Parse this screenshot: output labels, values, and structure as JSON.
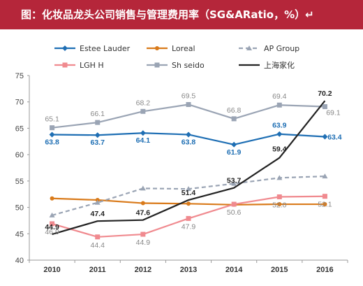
{
  "title": "图：化妆品龙头公司销售与管理费用率（SG&ARatio，%）↵",
  "chart_data": {
    "type": "line",
    "title": "图：化妆品龙头公司销售与管理费用率（SG&ARatio，%）",
    "xlabel": "",
    "ylabel": "",
    "categories": [
      "2010",
      "2011",
      "2012",
      "2013",
      "2014",
      "2015",
      "2016"
    ],
    "ylim": [
      40,
      75
    ],
    "yticks": [
      40,
      45,
      50,
      55,
      60,
      65,
      70,
      75
    ],
    "grid": false,
    "legend_position": "top",
    "series": [
      {
        "name": "Estee Lauder",
        "color": "#1f6fb4",
        "style": "solid",
        "marker": "diamond",
        "values": [
          63.8,
          63.7,
          64.1,
          63.8,
          61.9,
          63.9,
          63.4
        ],
        "labels": [
          "63.8",
          "63.7",
          "64.1",
          "63.8",
          "61.9",
          "63.9",
          "63.4"
        ]
      },
      {
        "name": "Loreal",
        "color": "#d97a1a",
        "style": "solid",
        "marker": "circle",
        "values": [
          51.7,
          51.4,
          50.8,
          50.7,
          50.5,
          50.6,
          50.6
        ],
        "labels": []
      },
      {
        "name": "AP Group",
        "color": "#9aa4b4",
        "style": "dashed",
        "marker": "triangle",
        "values": [
          48.5,
          50.9,
          53.6,
          53.5,
          54.5,
          55.6,
          55.9
        ],
        "labels": []
      },
      {
        "name": "LGH H",
        "color": "#f08a8f",
        "style": "solid",
        "marker": "square",
        "values": [
          46.9,
          44.4,
          44.9,
          47.9,
          50.6,
          52.0,
          52.1
        ],
        "labels": [
          "46.9",
          "44.4",
          "44.9",
          "47.9",
          "50.6",
          "52.0",
          "52.1"
        ]
      },
      {
        "name": "Sh seido",
        "color": "#9aa4b4",
        "style": "solid",
        "marker": "square",
        "values": [
          65.1,
          66.1,
          68.2,
          69.5,
          66.8,
          69.4,
          69.1
        ],
        "labels": [
          "65.1",
          "66.1",
          "68.2",
          "69.5",
          "66.8",
          "69.4",
          "69.1"
        ]
      },
      {
        "name": "上海家化",
        "color": "#222222",
        "style": "solid",
        "marker": "none",
        "values": [
          44.9,
          47.4,
          47.6,
          51.4,
          53.7,
          59.4,
          70.2
        ],
        "labels": [
          "44.9",
          "47.4",
          "47.6",
          "51.4",
          "53.7",
          "59.4",
          "70.2"
        ]
      }
    ]
  }
}
